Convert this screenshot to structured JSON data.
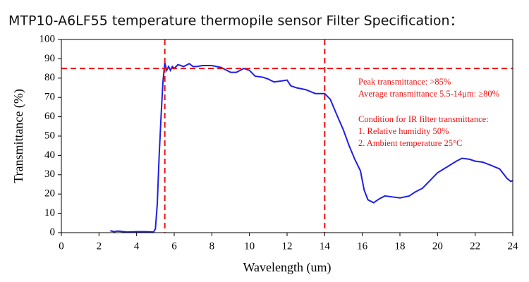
{
  "chart_data": {
    "type": "line",
    "title": "MTP10-A6LF55 temperature thermopile sensor Filter Specification：",
    "x_label": "Wavelength (um)",
    "y_label": "Transmittance (%)",
    "xlim": [
      0,
      24
    ],
    "xticks": [
      0,
      2,
      4,
      6,
      8,
      10,
      12,
      14,
      16,
      18,
      20,
      22,
      24
    ],
    "ylim": [
      0,
      100
    ],
    "yticks": [
      0,
      10,
      20,
      30,
      40,
      50,
      60,
      70,
      80,
      90,
      100
    ],
    "reference_lines": {
      "color": "#ee1111",
      "x": [
        5.5,
        14
      ],
      "y": [
        85
      ]
    },
    "annotations": {
      "color": "#ee1111",
      "lines": [
        "Peak transmittance: >85%",
        "Average transmittance 5.5-14μm: ≥80%",
        "Condition for IR filter transmittance:",
        "1. Relative humidity 50%",
        "2. Ambient temperature 25°C"
      ]
    },
    "series": [
      {
        "color": "#1f1fe6",
        "x": [
          2.6,
          2.8,
          3,
          3.5,
          4,
          4.5,
          4.9,
          5.0,
          5.1,
          5.2,
          5.3,
          5.4,
          5.5,
          5.6,
          5.7,
          5.8,
          5.9,
          6.0,
          6.2,
          6.5,
          6.8,
          7.0,
          7.2,
          7.5,
          8,
          8.5,
          9,
          9.3,
          9.7,
          10,
          10.3,
          10.7,
          11,
          11.3,
          11.7,
          12,
          12.2,
          12.5,
          13,
          13.5,
          14,
          14.3,
          14.6,
          15,
          15.3,
          15.6,
          15.9,
          16.1,
          16.3,
          16.6,
          16.9,
          17.2,
          17.6,
          18,
          18.5,
          18.8,
          19.2,
          19.6,
          20,
          20.5,
          21,
          21.3,
          21.7,
          22,
          22.4,
          22.8,
          23.3,
          23.7,
          23.9,
          24
        ],
        "values": [
          1,
          0.5,
          0.8,
          0.3,
          0.5,
          0.5,
          0.3,
          2,
          15,
          40,
          60,
          78,
          88,
          84,
          86,
          84,
          86,
          85,
          87,
          86,
          87.5,
          86,
          86,
          86.5,
          86.5,
          85.5,
          83,
          83,
          85,
          84,
          81,
          80.5,
          79.5,
          78,
          78.5,
          79,
          76,
          75,
          74,
          72,
          72,
          69,
          62,
          53,
          45,
          38,
          32,
          22,
          17,
          15.5,
          17.5,
          19,
          18.5,
          18,
          19,
          21,
          23,
          27,
          31,
          34,
          37,
          38.5,
          38,
          37,
          36.5,
          35,
          33,
          28,
          26.5,
          27
        ]
      }
    ]
  }
}
